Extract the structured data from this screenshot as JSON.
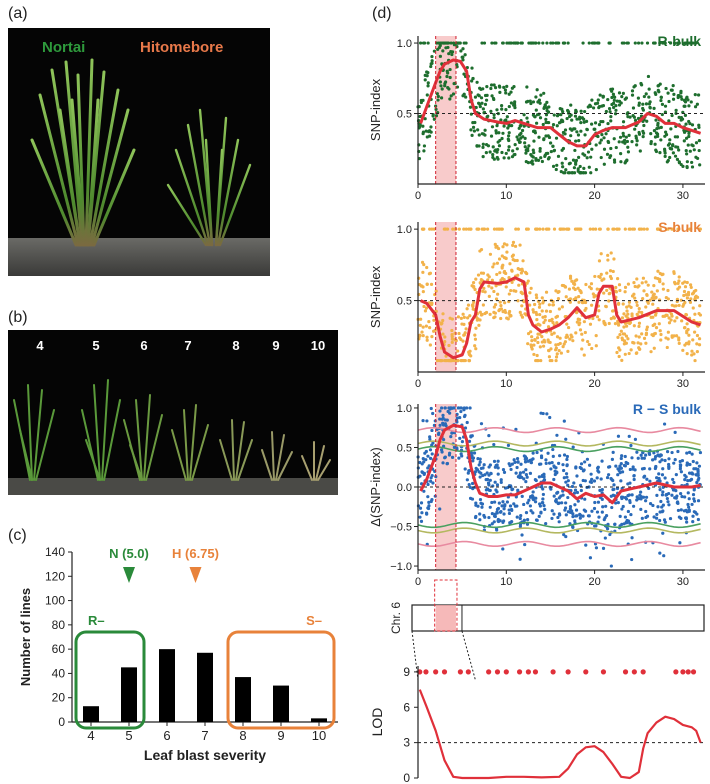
{
  "panels": {
    "a": "(a)",
    "b": "(b)",
    "c": "(c)",
    "d": "(d)"
  },
  "photo_a": {
    "labels": [
      {
        "text": "Nortai",
        "color": "#2e9a3c"
      },
      {
        "text": "Hitomebore",
        "color": "#e8794a"
      }
    ]
  },
  "photo_b": {
    "scores": [
      "4",
      "5",
      "6",
      "7",
      "8",
      "9",
      "10"
    ]
  },
  "colors": {
    "green": "#2a8a3a",
    "orange": "#e8823a",
    "r_bulk": "#1e6e2e",
    "s_bulk": "#f2b24a",
    "rs_bulk": "#2a6ab8",
    "smooth": "#e0303a",
    "highlight": "#f4a8a8",
    "ci_pink": "#e88aa0",
    "ci_olive": "#b4b860",
    "ci_green": "#4aa060"
  },
  "chart_data": [
    {
      "type": "bar",
      "panel": "c",
      "categories": [
        "4",
        "5",
        "6",
        "7",
        "8",
        "9",
        "10"
      ],
      "values": [
        13,
        45,
        60,
        57,
        37,
        30,
        3
      ],
      "xlabel": "Leaf blast severity",
      "ylabel": "Number of lines",
      "yticks": [
        "0",
        "20",
        "40",
        "60",
        "80",
        "100",
        "120",
        "140"
      ],
      "ylim": [
        0,
        140
      ],
      "markers": [
        {
          "label": "N (5.0)",
          "x": 5.0,
          "color": "#2a8a3a"
        },
        {
          "label": "H (6.75)",
          "x": 6.75,
          "color": "#e8823a"
        }
      ],
      "groups": [
        {
          "label": "R–",
          "from": "4",
          "to": "5",
          "color": "#2a8a3a"
        },
        {
          "label": "S–",
          "from": "8",
          "to": "10",
          "color": "#e8823a"
        }
      ]
    },
    {
      "type": "scatter",
      "panel": "d",
      "title": "R-bulk",
      "ylabel": "SNP-index",
      "yticks": [
        "0.5",
        "1.0"
      ],
      "xticks": [
        "0",
        "10",
        "20",
        "30"
      ],
      "xlim": [
        0,
        32.5
      ],
      "ylim": [
        0,
        1.05
      ],
      "dashed_y": 0.5,
      "smooth": {
        "x": [
          0.3,
          1,
          2,
          2.5,
          3,
          4,
          4.8,
          5.5,
          6,
          6.5,
          7.5,
          9,
          10,
          11,
          12,
          13.5,
          15,
          16,
          17,
          18,
          19,
          20,
          21,
          22,
          23.5,
          25,
          26,
          27,
          28,
          29,
          30,
          31,
          32
        ],
        "y": [
          0.43,
          0.55,
          0.72,
          0.8,
          0.85,
          0.88,
          0.87,
          0.8,
          0.6,
          0.5,
          0.46,
          0.44,
          0.43,
          0.45,
          0.43,
          0.4,
          0.4,
          0.35,
          0.3,
          0.27,
          0.27,
          0.35,
          0.38,
          0.4,
          0.4,
          0.44,
          0.5,
          0.48,
          0.43,
          0.43,
          0.4,
          0.38,
          0.36
        ]
      }
    },
    {
      "type": "scatter",
      "panel": "d",
      "title": "S-bulk",
      "ylabel": "SNP-index",
      "yticks": [
        "0.5",
        "1.0"
      ],
      "xticks": [
        "0",
        "10",
        "20",
        "30"
      ],
      "xlim": [
        0,
        32.5
      ],
      "ylim": [
        0,
        1.05
      ],
      "dashed_y": 0.5,
      "smooth": {
        "x": [
          0.3,
          1,
          2,
          2.5,
          3,
          4,
          5,
          5.5,
          6,
          6.5,
          7,
          7.5,
          9,
          10,
          11,
          12,
          12.5,
          13,
          14,
          15,
          16,
          17,
          18,
          19,
          20,
          20.5,
          21,
          22,
          22.5,
          23,
          25,
          27,
          29,
          31,
          32
        ],
        "y": [
          0.5,
          0.48,
          0.4,
          0.25,
          0.14,
          0.1,
          0.12,
          0.2,
          0.35,
          0.4,
          0.58,
          0.63,
          0.62,
          0.63,
          0.66,
          0.63,
          0.4,
          0.33,
          0.28,
          0.3,
          0.33,
          0.38,
          0.45,
          0.38,
          0.4,
          0.55,
          0.6,
          0.6,
          0.4,
          0.35,
          0.38,
          0.43,
          0.43,
          0.35,
          0.33
        ]
      }
    },
    {
      "type": "scatter",
      "panel": "d",
      "title": "R − S bulk",
      "ylabel": "Δ(SNP-index)",
      "yticks": [
        "−1.0",
        "−0.5",
        "0.0",
        "0.5",
        "1.0"
      ],
      "xticks": [
        "0",
        "10",
        "20",
        "30"
      ],
      "xlim": [
        0,
        32.5
      ],
      "ylim": [
        -1.05,
        1.05
      ],
      "dashed_y": 0.0,
      "smooth": {
        "x": [
          0.3,
          1,
          2,
          2.5,
          3,
          4,
          5,
          5.5,
          6,
          6.5,
          7,
          8,
          9,
          10,
          11,
          12,
          13,
          14,
          15,
          16,
          17,
          18,
          19,
          20,
          21,
          22,
          23,
          25,
          27,
          29,
          31,
          32
        ],
        "y": [
          -0.05,
          0.1,
          0.4,
          0.6,
          0.72,
          0.78,
          0.76,
          0.6,
          0.25,
          0.05,
          -0.08,
          -0.12,
          -0.12,
          -0.1,
          -0.1,
          -0.05,
          0.0,
          0.05,
          0.05,
          0.0,
          -0.05,
          -0.15,
          -0.08,
          -0.12,
          -0.1,
          -0.2,
          -0.05,
          0.0,
          0.05,
          0.0,
          0.0,
          0.02
        ]
      },
      "ci_pink": 0.72,
      "ci_olive": 0.55,
      "ci_green": 0.48
    },
    {
      "type": "line",
      "panel": "d",
      "ylabel": "LOD",
      "yticks": [
        "0",
        "3",
        "6",
        "9"
      ],
      "xlim": [
        0,
        32.5
      ],
      "ylim": [
        0,
        9.5
      ],
      "dashed_y": 3,
      "chr_label": "Chr. 6",
      "marker_y": 9,
      "markers_x": [
        0.2,
        0.9,
        2.0,
        3.0,
        4.8,
        5.7,
        8.0,
        9.0,
        10.0,
        11.5,
        12.5,
        13.3,
        15.3,
        17.0,
        19.0,
        21.0,
        23.5,
        24.5,
        25.5,
        29.2,
        30.0,
        30.6,
        31.2
      ],
      "lod": {
        "x": [
          0.2,
          1,
          2,
          3,
          4,
          5,
          6,
          7,
          8,
          10,
          12,
          14,
          16,
          17,
          18,
          19,
          20,
          21,
          22,
          23,
          24,
          25,
          25.5,
          26,
          27,
          28,
          29,
          30,
          31,
          31.5,
          32
        ],
        "y": [
          7.5,
          6.0,
          4.0,
          1.5,
          0.1,
          0.0,
          0.0,
          0.0,
          0.0,
          0.1,
          0.1,
          0.05,
          0.1,
          0.8,
          2.0,
          2.6,
          2.7,
          2.2,
          1.2,
          0.1,
          0.0,
          0.5,
          2.5,
          3.8,
          4.7,
          5.2,
          5.0,
          4.5,
          4.3,
          4.0,
          3.0
        ]
      },
      "highlight_x": [
        2.0,
        4.3
      ]
    }
  ]
}
